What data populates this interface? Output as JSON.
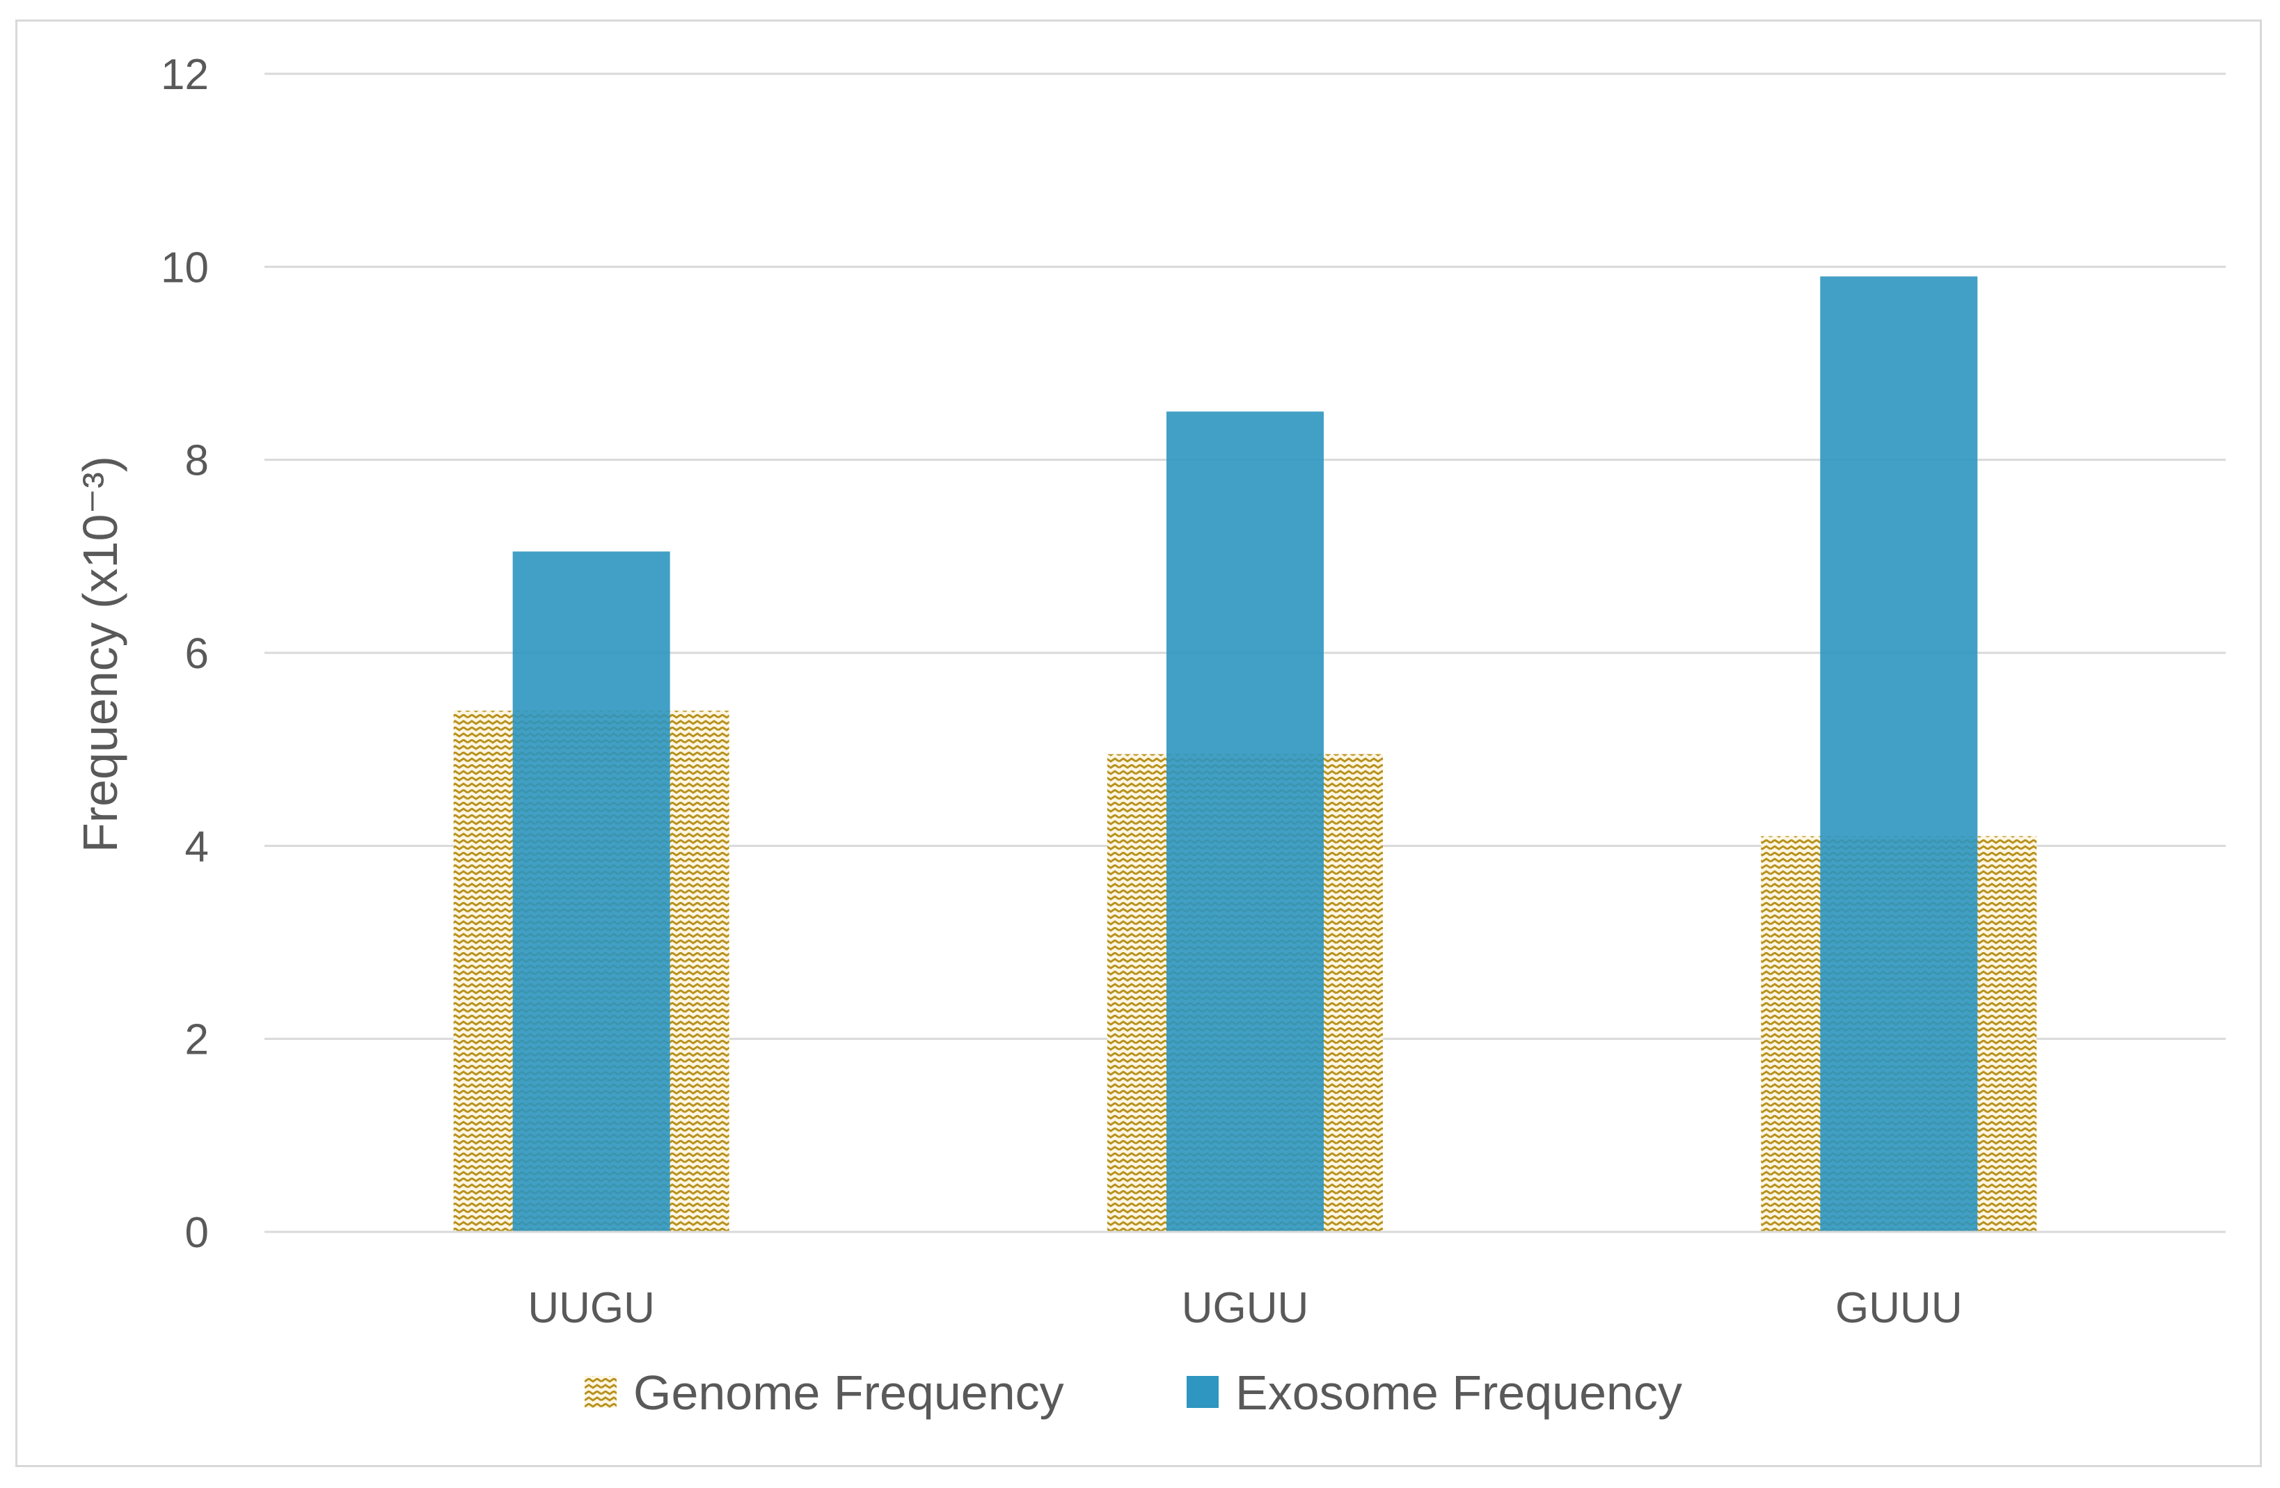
{
  "chart_data": {
    "type": "bar",
    "categories": [
      "UUGU",
      "UGUU",
      "GUUU"
    ],
    "series": [
      {
        "name": "Genome Frequency",
        "values": [
          5.4,
          4.95,
          4.1
        ],
        "color": "#c8a032",
        "pattern": "wave"
      },
      {
        "name": "Exosome Frequency",
        "values": [
          7.05,
          8.5,
          9.9
        ],
        "color": "#2e96c0",
        "pattern": "solid"
      }
    ],
    "xlabel": "",
    "ylabel": "Frequency (x10⁻³)",
    "ylim": [
      0,
      12
    ],
    "yticks": [
      0,
      2,
      4,
      6,
      8,
      10,
      12
    ],
    "grid": true,
    "legend": "bottom",
    "overlap": true
  }
}
